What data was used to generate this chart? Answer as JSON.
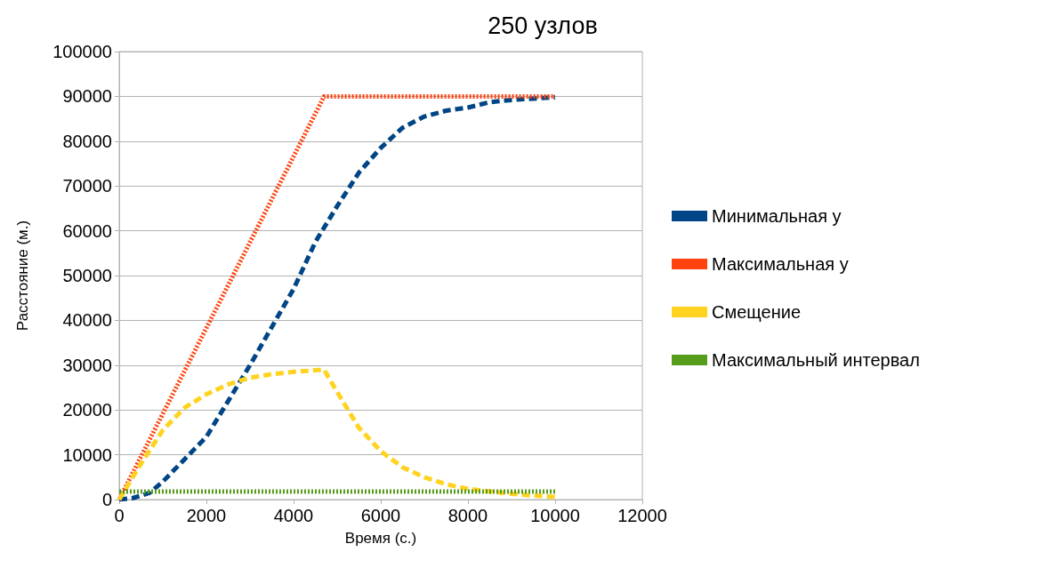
{
  "chart_data": {
    "type": "line",
    "title": "250 узлов",
    "xlabel": "Время (с.)",
    "ylabel": "Расстояние (м.)",
    "xlim": [
      0,
      12000
    ],
    "xticks": [
      0,
      2000,
      4000,
      6000,
      8000,
      10000,
      12000
    ],
    "ylim": [
      0,
      100000
    ],
    "yticks": [
      0,
      10000,
      20000,
      30000,
      40000,
      50000,
      60000,
      70000,
      80000,
      90000,
      100000
    ],
    "grid": "y",
    "legend": "right",
    "marker": "none",
    "series": [
      {
        "name": "Минимальная y",
        "color": "#004586",
        "line_style": "dashed",
        "x": [
          0,
          300,
          700,
          1000,
          1500,
          2000,
          2500,
          3000,
          3500,
          4000,
          4500,
          5000,
          5500,
          6000,
          6500,
          7000,
          7500,
          8000,
          8500,
          9000,
          9500,
          10000
        ],
        "values": [
          0,
          300,
          1500,
          4000,
          9000,
          14000,
          22000,
          30000,
          38500,
          47000,
          57500,
          65500,
          73000,
          78500,
          83000,
          85500,
          86800,
          87500,
          88700,
          89200,
          89500,
          89800
        ]
      },
      {
        "name": "Максимальная y",
        "color": "#ff420e",
        "line_style": "dotted",
        "x": [
          0,
          4700,
          10000
        ],
        "values": [
          0,
          90000,
          90000
        ]
      },
      {
        "name": "Смещение",
        "color": "#ffd320",
        "line_style": "dashed",
        "x": [
          0,
          500,
          1000,
          1500,
          2000,
          2500,
          3000,
          3500,
          4000,
          4700,
          5000,
          5500,
          6000,
          6500,
          7000,
          7500,
          8000,
          8500,
          9000,
          9500,
          10000
        ],
        "values": [
          0,
          8000,
          15500,
          20500,
          23500,
          25700,
          27200,
          28000,
          28500,
          29000,
          24000,
          16000,
          10800,
          7200,
          5000,
          3400,
          2400,
          1800,
          1300,
          900,
          600
        ]
      },
      {
        "name": "Максимальный интервал",
        "color": "#579d1c",
        "line_style": "dotted",
        "x": [
          0,
          10000
        ],
        "values": [
          1800,
          1800
        ]
      }
    ]
  }
}
